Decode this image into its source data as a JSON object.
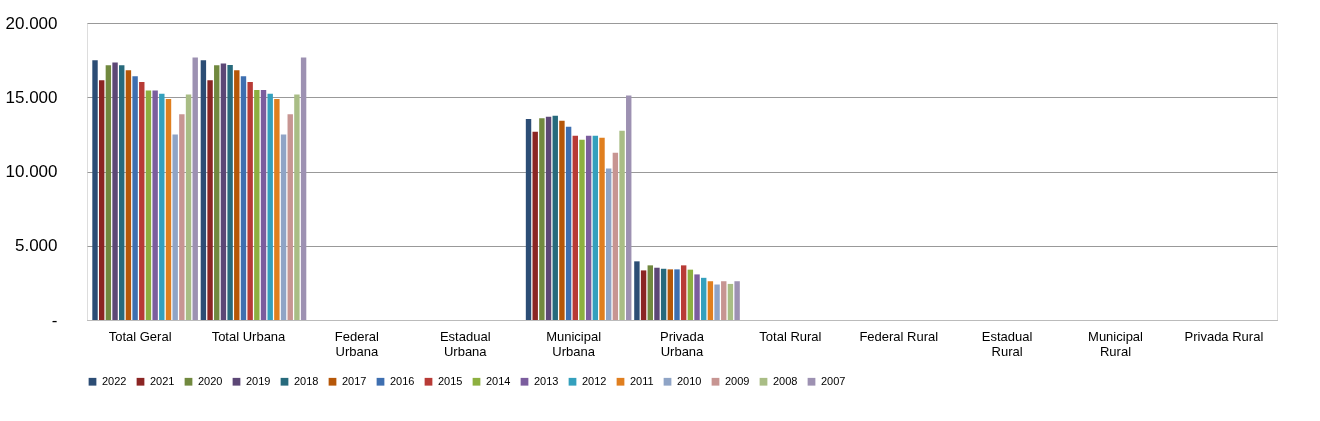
{
  "chart_data": {
    "type": "bar",
    "categories": [
      "Total Geral",
      "Total Urbana",
      "Federal Urbana",
      "Estadual Urbana",
      "Municipal Urbana",
      "Privada Urbana",
      "Total Rural",
      "Federal Rural",
      "Estadual Rural",
      "Municipal Rural",
      "Privada Rural"
    ],
    "series": [
      {
        "name": "2022",
        "color": "#2c4d75",
        "values": [
          17500,
          17500,
          null,
          null,
          13540,
          3950,
          null,
          null,
          null,
          null,
          null
        ]
      },
      {
        "name": "2021",
        "color": "#8b2523",
        "values": [
          16140,
          16140,
          null,
          null,
          12680,
          3340,
          null,
          null,
          null,
          null,
          null
        ]
      },
      {
        "name": "2020",
        "color": "#71893f",
        "values": [
          17160,
          17160,
          null,
          null,
          13580,
          3680,
          null,
          null,
          null,
          null,
          null
        ]
      },
      {
        "name": "2019",
        "color": "#5c4776",
        "values": [
          17340,
          17270,
          null,
          null,
          13690,
          3520,
          null,
          null,
          null,
          null,
          null
        ]
      },
      {
        "name": "2018",
        "color": "#276a7c",
        "values": [
          17160,
          17180,
          null,
          null,
          13760,
          3450,
          null,
          null,
          null,
          null,
          null
        ]
      },
      {
        "name": "2017",
        "color": "#b65708",
        "values": [
          16820,
          16820,
          null,
          null,
          13420,
          3410,
          null,
          null,
          null,
          null,
          null
        ]
      },
      {
        "name": "2016",
        "color": "#3e6fb0",
        "values": [
          16410,
          16410,
          null,
          null,
          13020,
          3410,
          null,
          null,
          null,
          null,
          null
        ]
      },
      {
        "name": "2015",
        "color": "#b83b36",
        "values": [
          16020,
          16020,
          null,
          null,
          12410,
          3680,
          null,
          null,
          null,
          null,
          null
        ]
      },
      {
        "name": "2014",
        "color": "#8db040",
        "values": [
          15450,
          15480,
          null,
          null,
          12140,
          3390,
          null,
          null,
          null,
          null,
          null
        ]
      },
      {
        "name": "2013",
        "color": "#7b5d9e",
        "values": [
          15450,
          15480,
          null,
          null,
          12410,
          3070,
          null,
          null,
          null,
          null,
          null
        ]
      },
      {
        "name": "2012",
        "color": "#34a0bd",
        "values": [
          15230,
          15230,
          null,
          null,
          12410,
          2840,
          null,
          null,
          null,
          null,
          null
        ]
      },
      {
        "name": "2011",
        "color": "#e07f1f",
        "values": [
          14890,
          14890,
          null,
          null,
          12270,
          2610,
          null,
          null,
          null,
          null,
          null
        ]
      },
      {
        "name": "2010",
        "color": "#8fa4c6",
        "values": [
          12500,
          12500,
          null,
          null,
          10200,
          2390,
          null,
          null,
          null,
          null,
          null
        ]
      },
      {
        "name": "2009",
        "color": "#c79592",
        "values": [
          13860,
          13860,
          null,
          null,
          11260,
          2610,
          null,
          null,
          null,
          null,
          null
        ]
      },
      {
        "name": "2008",
        "color": "#a9bd85",
        "values": [
          15180,
          15180,
          null,
          null,
          12750,
          2430,
          null,
          null,
          null,
          null,
          null
        ]
      },
      {
        "name": "2007",
        "color": "#9d91b2",
        "values": [
          17680,
          17680,
          null,
          null,
          15110,
          2610,
          null,
          null,
          null,
          null,
          null
        ]
      }
    ],
    "ylim": [
      0,
      20000
    ],
    "yticks": [
      {
        "value": 0,
        "label": "-"
      },
      {
        "value": 5000,
        "label": "5.000"
      },
      {
        "value": 10000,
        "label": "10.000"
      },
      {
        "value": 15000,
        "label": "15.000"
      },
      {
        "value": 20000,
        "label": "20.000"
      }
    ],
    "grid": "y",
    "legend": "bottom"
  }
}
